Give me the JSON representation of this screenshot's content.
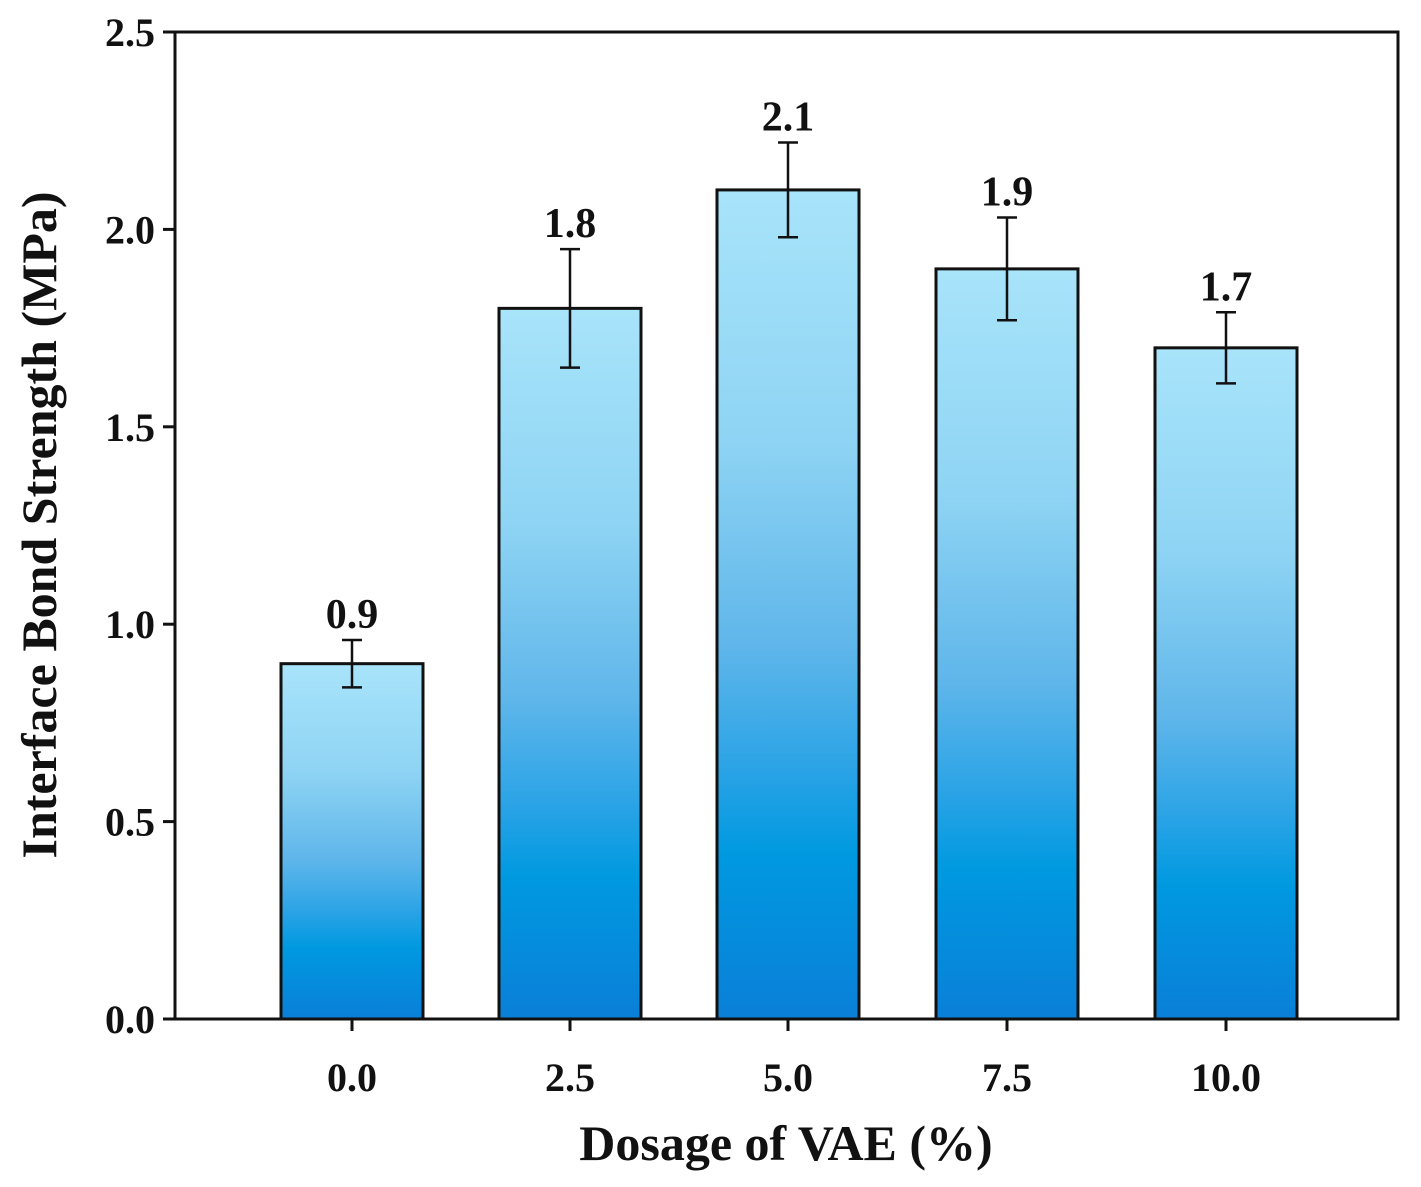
{
  "chart_data": {
    "type": "bar",
    "title": "",
    "xlabel": "Dosage of VAE (%)",
    "ylabel": "Interface Bond Strength (MPa)",
    "categories": [
      "0.0",
      "2.5",
      "5.0",
      "7.5",
      "10.0"
    ],
    "values": [
      0.9,
      1.8,
      2.1,
      1.9,
      1.7
    ],
    "value_labels": [
      "0.9",
      "1.8",
      "2.1",
      "1.9",
      "1.7"
    ],
    "error_upper": [
      0.96,
      1.95,
      2.22,
      2.03,
      1.79
    ],
    "error_lower": [
      0.84,
      1.65,
      1.98,
      1.77,
      1.61
    ],
    "ylim": [
      0,
      2.5
    ],
    "yticks": [
      "0.0",
      "0.5",
      "1.0",
      "1.5",
      "2.0",
      "2.5"
    ],
    "grid": false,
    "colors": {
      "bar_top": "#a8e4fa",
      "bar_bottom": "#0a7fd8",
      "bar_mid": "#0099e0",
      "outline": "#111111"
    }
  }
}
